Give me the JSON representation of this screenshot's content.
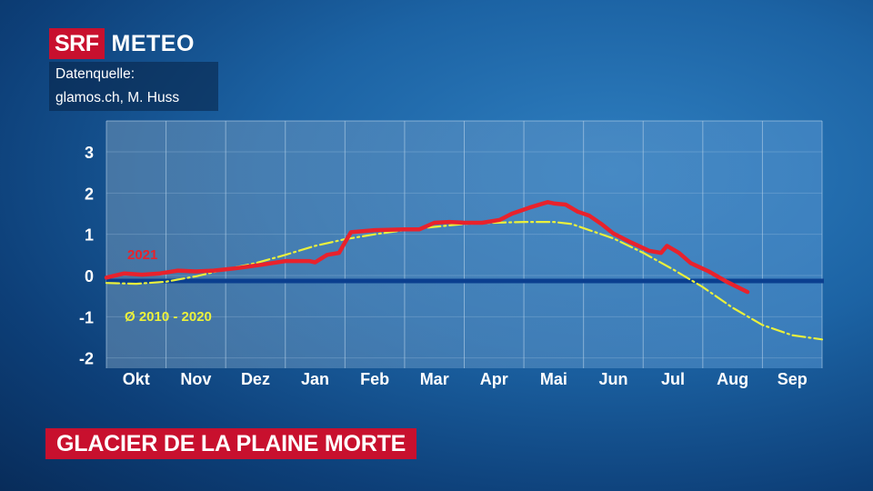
{
  "brand": {
    "srf": "SRF",
    "meteo": "METEO"
  },
  "source": {
    "line1": "Datenquelle:",
    "line2": "glamos.ch, M. Huss"
  },
  "headline": "GLACIER DE LA PLAINE MORTE",
  "colors": {
    "series_2021": "#e8222c",
    "series_avg": "#eaf03c",
    "zero_line": "#0b3f8f",
    "title_bg": "#c8102e"
  },
  "chart_data": {
    "type": "line",
    "months": [
      "Okt",
      "Nov",
      "Dez",
      "Jan",
      "Feb",
      "Mar",
      "Apr",
      "Mai",
      "Jun",
      "Jul",
      "Aug",
      "Sep"
    ],
    "yticks": [
      3,
      2,
      1,
      0,
      -1,
      -2
    ],
    "ylim": [
      -2.25,
      3.75
    ],
    "xlim": [
      0,
      12
    ],
    "grid": true,
    "series": [
      {
        "name": "2021",
        "style": "solid",
        "x": [
          0,
          0.3,
          0.6,
          0.9,
          1.2,
          1.5,
          1.8,
          2.2,
          2.6,
          3.0,
          3.4,
          3.5,
          3.7,
          3.9,
          4.0,
          4.1,
          4.5,
          5.0,
          5.25,
          5.5,
          5.75,
          6.0,
          6.3,
          6.6,
          6.8,
          7.1,
          7.4,
          7.5,
          7.7,
          7.9,
          8.1,
          8.3,
          8.5,
          8.8,
          9.1,
          9.3,
          9.4,
          9.6,
          9.8,
          10.1,
          10.4,
          10.75
        ],
        "y": [
          -0.05,
          0.05,
          0.02,
          0.05,
          0.12,
          0.1,
          0.12,
          0.18,
          0.26,
          0.35,
          0.35,
          0.32,
          0.5,
          0.55,
          0.8,
          1.05,
          1.1,
          1.12,
          1.12,
          1.28,
          1.3,
          1.28,
          1.28,
          1.35,
          1.5,
          1.65,
          1.78,
          1.75,
          1.72,
          1.55,
          1.45,
          1.25,
          1.02,
          0.8,
          0.6,
          0.55,
          0.72,
          0.55,
          0.3,
          0.1,
          -0.15,
          -0.4
        ]
      },
      {
        "name": "Ø 2010 - 2020",
        "style": "dashed",
        "x": [
          0,
          0.5,
          1.0,
          1.5,
          2.0,
          2.5,
          3.0,
          3.5,
          4.0,
          4.5,
          5.0,
          5.5,
          6.0,
          6.5,
          7.0,
          7.5,
          7.8,
          8.0,
          8.5,
          9.0,
          9.5,
          10.0,
          10.5,
          11.0,
          11.5,
          12.0
        ],
        "y": [
          -0.18,
          -0.2,
          -0.15,
          -0.02,
          0.15,
          0.3,
          0.5,
          0.72,
          0.88,
          1.0,
          1.1,
          1.18,
          1.25,
          1.28,
          1.3,
          1.3,
          1.25,
          1.15,
          0.9,
          0.55,
          0.15,
          -0.28,
          -0.78,
          -1.2,
          -1.45,
          -1.55
        ]
      }
    ],
    "labels": [
      {
        "text": "2021",
        "series": 0
      },
      {
        "text": "Ø 2010 - 2020",
        "series": 1
      }
    ]
  }
}
